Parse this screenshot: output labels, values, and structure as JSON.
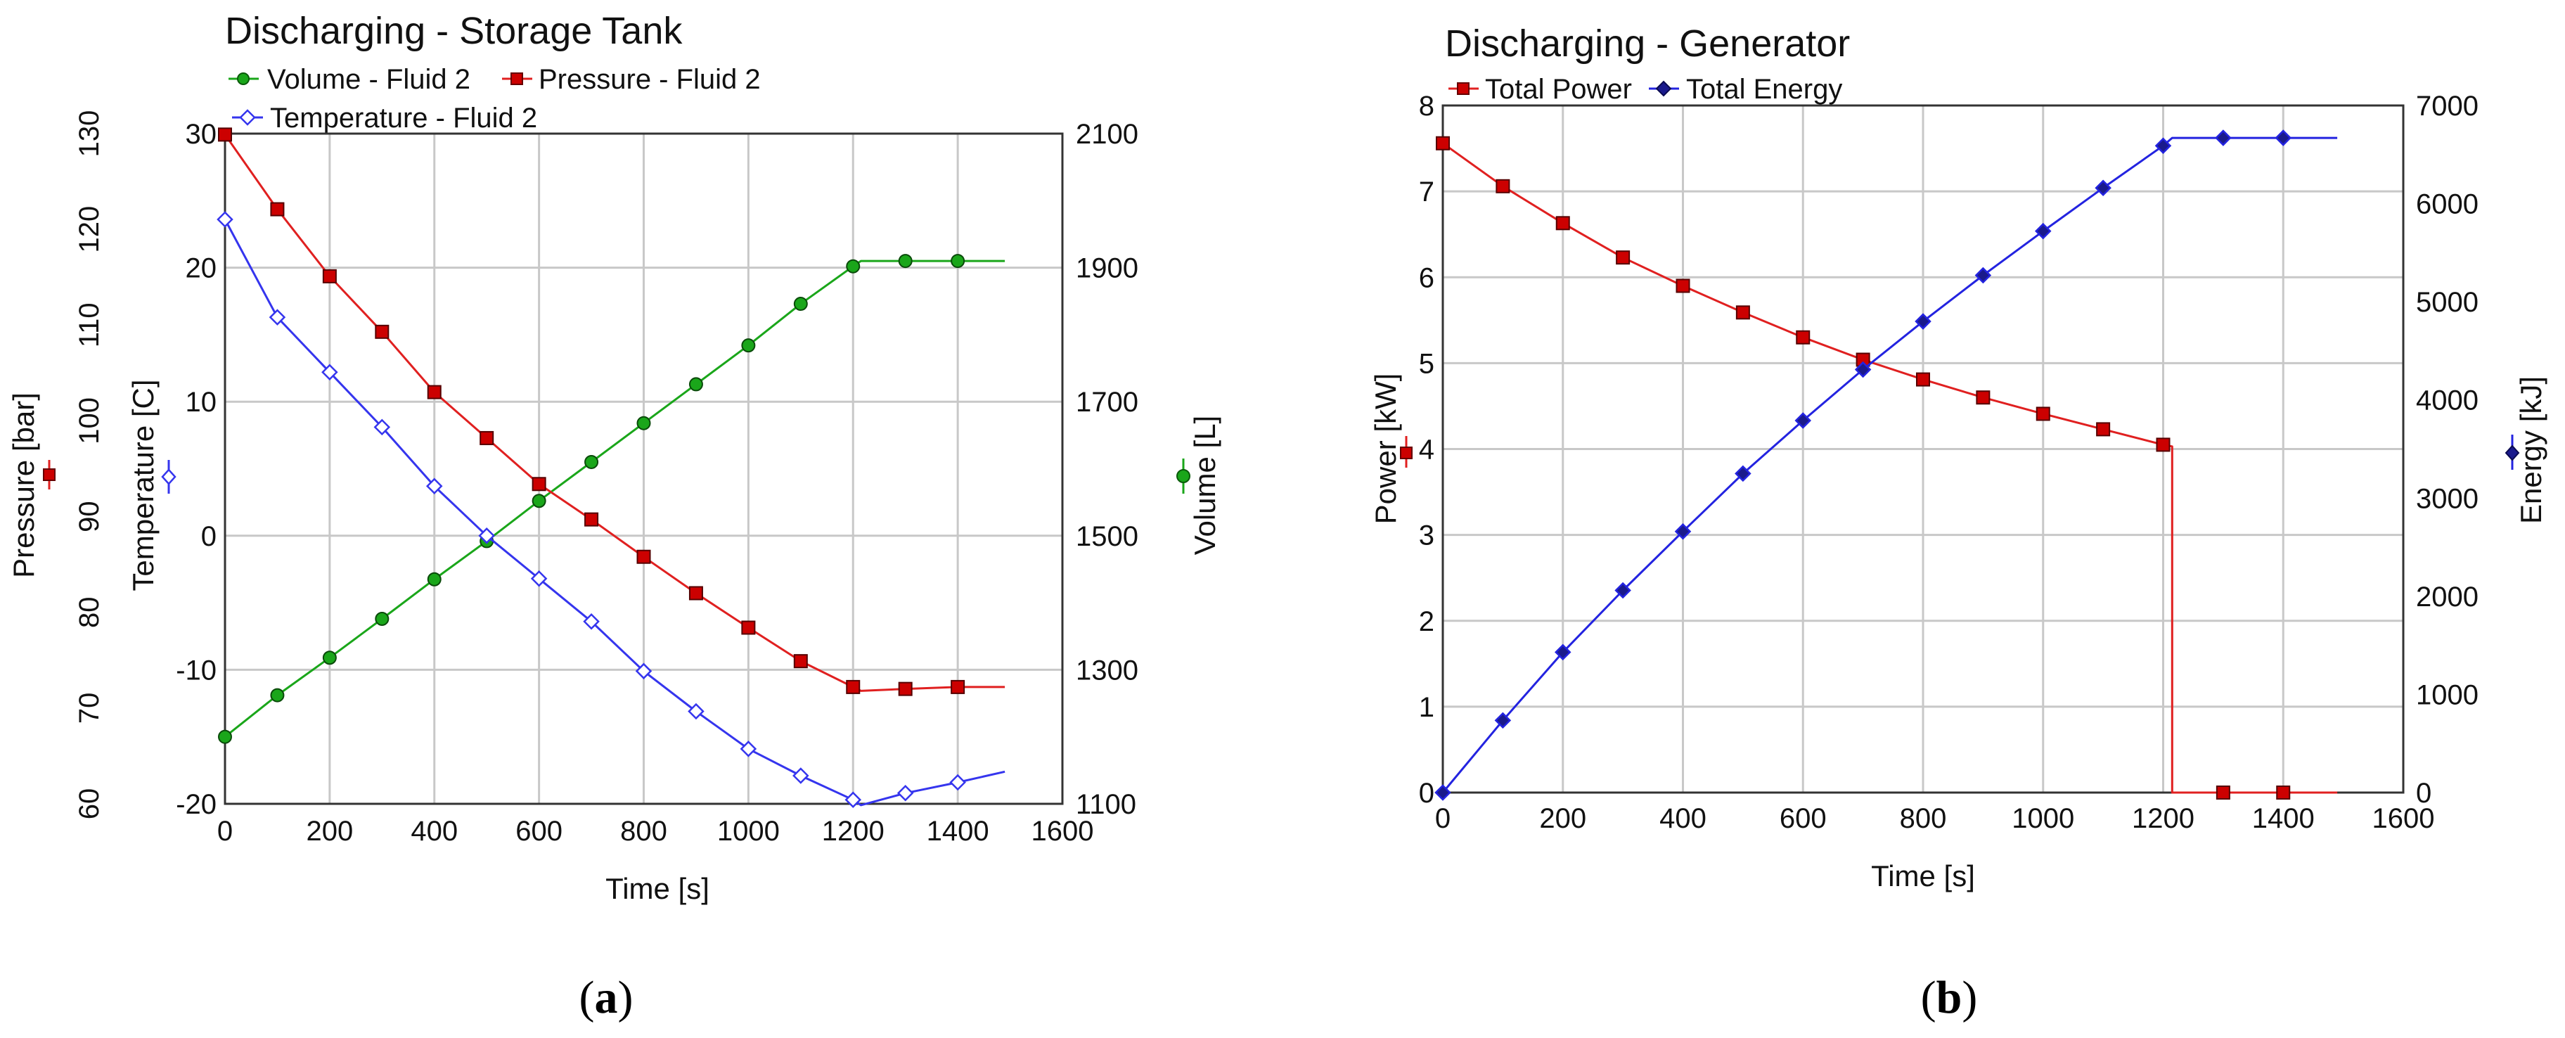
{
  "chart_data": [
    {
      "type": "line",
      "title": "Discharging - Storage Tank",
      "caption_letter": "a",
      "xlabel": "Time [s]",
      "xlim": [
        0,
        1600
      ],
      "xticks": [
        "0",
        "200",
        "400",
        "600",
        "800",
        "1000",
        "1200",
        "1400",
        "1600"
      ],
      "axes": {
        "pressure": {
          "label": "Pressure [bar]",
          "lim": [
            60,
            130
          ],
          "ticks": [
            "60",
            "70",
            "80",
            "90",
            "100",
            "110",
            "120",
            "130"
          ],
          "color": "#e02020"
        },
        "temperature": {
          "label": "Temperature [C]",
          "lim": [
            -20,
            30
          ],
          "ticks": [
            "-20",
            "-10",
            "0",
            "10",
            "20",
            "30"
          ],
          "color": "#3535ee"
        },
        "volume": {
          "label": "Volume [L]",
          "lim": [
            1100,
            2100
          ],
          "ticks": [
            "1100",
            "1300",
            "1500",
            "1700",
            "1900",
            "2100"
          ],
          "color": "#1aa61a"
        }
      },
      "series": [
        {
          "name": "Volume - Fluid 2",
          "axis": "volume",
          "marker": "circle",
          "color": "#1aa61a",
          "fill": "#1aa61a",
          "x": [
            0,
            100,
            200,
            300,
            400,
            500,
            600,
            700,
            800,
            900,
            1000,
            1100,
            1200,
            1300,
            1400
          ],
          "values": [
            1200,
            1262,
            1318,
            1376,
            1435,
            1492,
            1552,
            1610,
            1668,
            1726,
            1784,
            1846,
            1902,
            1910,
            1910
          ],
          "line_x": [
            0,
            100,
            200,
            300,
            400,
            500,
            600,
            700,
            800,
            900,
            1000,
            1100,
            1200,
            1215,
            1300,
            1400,
            1490
          ],
          "line_values": [
            1200,
            1262,
            1318,
            1376,
            1435,
            1492,
            1552,
            1610,
            1668,
            1726,
            1784,
            1846,
            1902,
            1910,
            1910,
            1910,
            1910
          ]
        },
        {
          "name": "Pressure - Fluid 2",
          "axis": "pressure",
          "marker": "square",
          "color": "#e02020",
          "fill": "#cc0000",
          "x": [
            0,
            100,
            200,
            300,
            400,
            500,
            600,
            700,
            800,
            900,
            1000,
            1100,
            1200,
            1300,
            1400
          ],
          "values": [
            129.9,
            122.1,
            115.1,
            109.3,
            103.0,
            98.2,
            93.4,
            89.7,
            85.8,
            82.0,
            78.4,
            74.9,
            72.2,
            72.0,
            72.2
          ],
          "line_x": [
            0,
            100,
            200,
            300,
            400,
            500,
            600,
            700,
            800,
            900,
            1000,
            1100,
            1200,
            1215,
            1300,
            1400,
            1490
          ],
          "line_values": [
            129.9,
            122.1,
            115.1,
            109.3,
            103.0,
            98.2,
            93.4,
            89.7,
            85.8,
            82.0,
            78.4,
            74.9,
            72.2,
            71.8,
            72.0,
            72.2,
            72.2
          ]
        },
        {
          "name": "Temperature - Fluid 2",
          "axis": "temperature",
          "marker": "diamond",
          "color": "#3535ee",
          "fill": "#ffffff",
          "x": [
            0,
            100,
            200,
            300,
            400,
            500,
            600,
            700,
            800,
            900,
            1000,
            1100,
            1200,
            1300,
            1400
          ],
          "values": [
            23.6,
            16.3,
            12.2,
            8.1,
            3.7,
            0.0,
            -3.2,
            -6.4,
            -10.1,
            -13.1,
            -15.9,
            -17.9,
            -19.7,
            -19.2,
            -18.4
          ],
          "line_x": [
            0,
            100,
            200,
            300,
            400,
            500,
            600,
            700,
            800,
            900,
            1000,
            1100,
            1200,
            1215,
            1300,
            1400,
            1490
          ],
          "line_values": [
            23.6,
            16.3,
            12.2,
            8.1,
            3.7,
            0.0,
            -3.2,
            -6.4,
            -10.1,
            -13.1,
            -15.9,
            -17.9,
            -19.7,
            -20.1,
            -19.2,
            -18.4,
            -17.6
          ]
        }
      ]
    },
    {
      "type": "line",
      "title": "Discharging - Generator",
      "caption_letter": "b",
      "xlabel": "Time [s]",
      "xlim": [
        0,
        1600
      ],
      "xticks": [
        "0",
        "200",
        "400",
        "600",
        "800",
        "1000",
        "1200",
        "1400",
        "1600"
      ],
      "axes": {
        "power": {
          "label": "Power [kW]",
          "lim": [
            0,
            8
          ],
          "ticks": [
            "0",
            "1",
            "2",
            "3",
            "4",
            "5",
            "6",
            "7",
            "8"
          ],
          "color": "#e02020"
        },
        "energy": {
          "label": "Energy [kJ]",
          "lim": [
            0,
            7000
          ],
          "ticks": [
            "0",
            "1000",
            "2000",
            "3000",
            "4000",
            "5000",
            "6000",
            "7000"
          ],
          "color": "#1a1aa0"
        }
      },
      "series": [
        {
          "name": "Total Power",
          "axis": "power",
          "marker": "square",
          "color": "#e02020",
          "fill": "#cc0000",
          "x": [
            0,
            100,
            200,
            300,
            400,
            500,
            600,
            700,
            800,
            900,
            1000,
            1100,
            1200,
            1300,
            1400
          ],
          "values": [
            7.56,
            7.06,
            6.63,
            6.23,
            5.9,
            5.59,
            5.3,
            5.04,
            4.81,
            4.6,
            4.41,
            4.23,
            4.05,
            0,
            0
          ],
          "line_x": [
            0,
            100,
            200,
            300,
            400,
            500,
            600,
            700,
            800,
            900,
            1000,
            1100,
            1200,
            1215,
            1215,
            1300,
            1400,
            1490
          ],
          "line_values": [
            7.56,
            7.06,
            6.63,
            6.23,
            5.9,
            5.59,
            5.3,
            5.04,
            4.81,
            4.6,
            4.41,
            4.23,
            4.05,
            4.03,
            0,
            0,
            0,
            0
          ]
        },
        {
          "name": "Total Energy",
          "axis": "energy",
          "marker": "diamond",
          "color": "#2323e0",
          "fill": "#1a1a8c",
          "x": [
            0,
            100,
            200,
            300,
            400,
            500,
            600,
            700,
            800,
            900,
            1000,
            1100,
            1200,
            1300,
            1400
          ],
          "values": [
            0,
            735,
            1430,
            2060,
            2660,
            3250,
            3790,
            4310,
            4800,
            5270,
            5720,
            6160,
            6590,
            6670,
            6670
          ],
          "line_x": [
            0,
            100,
            200,
            300,
            400,
            500,
            600,
            700,
            800,
            900,
            1000,
            1100,
            1200,
            1215,
            1300,
            1400,
            1490
          ],
          "line_values": [
            0,
            735,
            1430,
            2060,
            2660,
            3250,
            3790,
            4310,
            4800,
            5270,
            5720,
            6160,
            6590,
            6670,
            6670,
            6670,
            6670
          ]
        }
      ]
    }
  ]
}
